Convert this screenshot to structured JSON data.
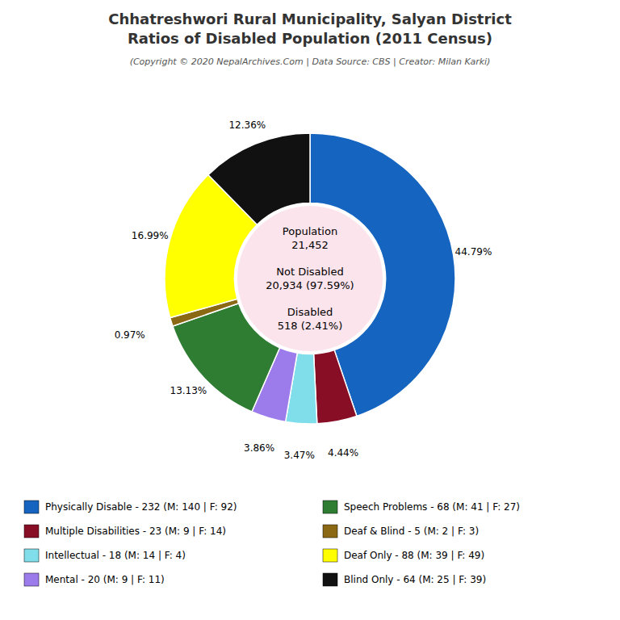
{
  "chart_data": {
    "type": "donut",
    "title": [
      "Chhatreshwori Rural Municipality, Salyan District",
      "Ratios of Disabled Population (2011 Census)"
    ],
    "subtitle": "(Copyright © 2020 NepalArchives.Com | Data Source: CBS | Creator: Milan Karki)",
    "categories": [
      "Physically Disable - 232 (M: 140 | F: 92)",
      "Multiple Disabilities - 23 (M: 9 | F: 14)",
      "Intellectual - 18 (M: 14 | F: 4)",
      "Mental - 20 (M: 9 | F: 11)",
      "Speech Problems - 68 (M: 41 | F: 27)",
      "Deaf & Blind - 5 (M: 2 | F: 3)",
      "Deaf Only - 88 (M: 39 | F: 49)",
      "Blind Only - 64 (M: 25 | F: 39)"
    ],
    "values": [
      44.79,
      4.44,
      3.47,
      3.86,
      13.13,
      0.97,
      16.99,
      12.36
    ],
    "value_labels": [
      "44.79%",
      "4.44%",
      "3.47%",
      "3.86%",
      "13.13%",
      "0.97%",
      "16.99%",
      "12.36%"
    ],
    "colors": [
      "#1565c0",
      "#880e26",
      "#80deea",
      "#9c7bea",
      "#2e7d32",
      "#8B6914",
      "#ffff00",
      "#111111"
    ],
    "data_labels": true,
    "legend": "bottom",
    "annotations": [
      [
        "Population",
        "21,452"
      ],
      [
        "Not Disabled",
        "20,934 (97.59%)"
      ],
      [
        "Disabled",
        "518 (2.41%)"
      ]
    ]
  }
}
